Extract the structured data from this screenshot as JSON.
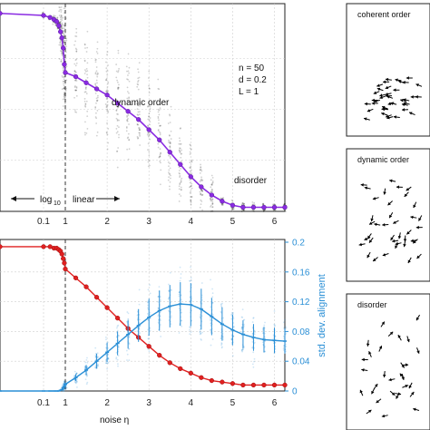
{
  "chart_data": [
    {
      "type": "line",
      "panel": "top",
      "x_ticks": [
        "0.1",
        "1",
        "2",
        "3",
        "4",
        "5",
        "6"
      ],
      "x": [
        0.001,
        0.1,
        0.2,
        0.3,
        0.4,
        0.5,
        0.6,
        0.7,
        0.8,
        0.9,
        1.0,
        1.25,
        1.5,
        1.75,
        2.0,
        2.25,
        2.5,
        2.75,
        3.0,
        3.25,
        3.5,
        3.75,
        4.0,
        4.25,
        4.5,
        4.75,
        5.0,
        5.25,
        5.5,
        5.75,
        6.0,
        6.25
      ],
      "series": [
        {
          "values": [
            0.97,
            0.96,
            0.95,
            0.94,
            0.93,
            0.91,
            0.88,
            0.85,
            0.8,
            0.72,
            0.68,
            0.66,
            0.63,
            0.6,
            0.57,
            0.53,
            0.49,
            0.45,
            0.4,
            0.35,
            0.29,
            0.23,
            0.17,
            0.12,
            0.08,
            0.05,
            0.03,
            0.02,
            0.02,
            0.02,
            0.02,
            0.02
          ]
        }
      ],
      "grid": true,
      "annotations": {
        "params": [
          "n = 50",
          "d = 0.2",
          "L = 1"
        ],
        "dynamic_order": "dynamic order",
        "disorder": "disorder",
        "scale_log": "log",
        "scale_log_sub": "10",
        "scale_linear": "linear"
      }
    },
    {
      "type": "line",
      "panel": "bottom",
      "x_ticks": [
        "0.1",
        "1",
        "2",
        "3",
        "4",
        "5",
        "6"
      ],
      "xlabel": "noise η",
      "y2label": "std. dev. alignment",
      "y2_ticks": [
        "0",
        "0.04",
        "0.08",
        "0.12",
        "0.16",
        "0.2"
      ],
      "y2lim": [
        0,
        0.2
      ],
      "x": [
        0.001,
        0.1,
        0.2,
        0.3,
        0.4,
        0.5,
        0.6,
        0.7,
        0.8,
        0.9,
        1.0,
        1.25,
        1.5,
        1.75,
        2.0,
        2.25,
        2.5,
        2.75,
        3.0,
        3.25,
        3.5,
        3.75,
        4.0,
        4.25,
        4.5,
        4.75,
        5.0,
        5.25,
        5.5,
        5.75,
        6.0,
        6.25
      ],
      "series": [
        {
          "color": "#e02020",
          "axis": "left",
          "values": [
            0.97,
            0.97,
            0.97,
            0.96,
            0.96,
            0.95,
            0.94,
            0.92,
            0.89,
            0.86,
            0.82,
            0.76,
            0.7,
            0.63,
            0.56,
            0.49,
            0.42,
            0.36,
            0.3,
            0.24,
            0.19,
            0.15,
            0.12,
            0.09,
            0.07,
            0.06,
            0.05,
            0.04,
            0.04,
            0.04,
            0.04,
            0.04
          ]
        },
        {
          "color": "#2a8fd6",
          "axis": "right",
          "values": [
            0.0,
            0.0,
            0.0,
            0.0,
            0.0,
            0.0,
            0.001,
            0.002,
            0.004,
            0.006,
            0.009,
            0.018,
            0.028,
            0.04,
            0.052,
            0.064,
            0.076,
            0.088,
            0.099,
            0.108,
            0.114,
            0.117,
            0.116,
            0.11,
            0.1,
            0.09,
            0.082,
            0.076,
            0.072,
            0.069,
            0.068,
            0.067
          ]
        }
      ],
      "grid": true
    }
  ],
  "panels": {
    "coherent": "coherent order",
    "dynamic": "dynamic order",
    "disorder": "disorder"
  },
  "colors": {
    "purple": "#8a2be2",
    "red": "#e02020",
    "blue": "#2a8fd6"
  }
}
